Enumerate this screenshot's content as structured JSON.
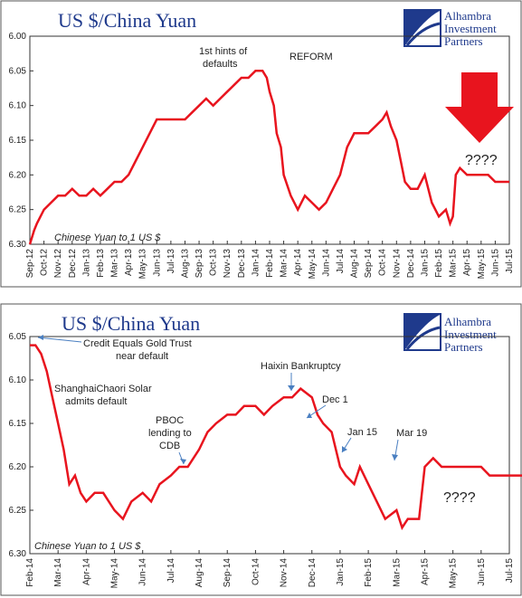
{
  "charts": [
    {
      "title": "US $/China Yuan",
      "series_label": "Chinese Yuan to 1 US $",
      "logo": {
        "line1": "Alhambra",
        "line2": "Investment",
        "line3": "Partners"
      },
      "chart_data": {
        "type": "line",
        "title": "US $/China Yuan",
        "ylabel": "Chinese Yuan to 1 US $",
        "ylim": [
          6.3,
          6.0
        ],
        "y_reversed": true,
        "y_ticks": [
          "6.00",
          "6.05",
          "6.10",
          "6.15",
          "6.20",
          "6.25",
          "6.30"
        ],
        "x_ticks": [
          "Sep-12",
          "Oct-12",
          "Nov-12",
          "Dec-12",
          "Jan-13",
          "Feb-13",
          "Mar-13",
          "Apr-13",
          "May-13",
          "Jun-13",
          "Jul-13",
          "Aug-13",
          "Sep-13",
          "Oct-13",
          "Nov-13",
          "Dec-13",
          "Jan-14",
          "Feb-14",
          "Mar-14",
          "Apr-14",
          "May-14",
          "Jun-14",
          "Jul-14",
          "Aug-14",
          "Sep-14",
          "Oct-14",
          "Nov-14",
          "Dec-14",
          "Jan-15",
          "Feb-15",
          "Mar-15",
          "Apr-15",
          "May-15",
          "Jun-15",
          "Jul-15"
        ],
        "x": [
          0,
          0.3,
          0.5,
          1,
          1.5,
          2,
          2.5,
          3,
          3.5,
          4,
          4.5,
          5,
          5.5,
          6,
          6.5,
          7,
          7.5,
          8,
          8.5,
          9,
          9.5,
          10,
          10.5,
          11,
          11.5,
          12,
          12.5,
          13,
          13.5,
          14,
          14.5,
          15,
          15.5,
          16,
          16.5,
          16.8,
          17,
          17.3,
          17.5,
          17.8,
          18,
          18.5,
          19,
          19.5,
          20,
          20.5,
          21,
          21.5,
          22,
          22.5,
          23,
          23.5,
          24,
          24.5,
          25,
          25.3,
          25.6,
          26,
          26.3,
          26.6,
          27,
          27.5,
          28,
          28.5,
          29,
          29.5,
          29.8,
          30,
          30.2,
          30.5,
          31,
          31.5,
          32,
          32.5,
          33,
          33.5,
          34
        ],
        "values": [
          6.3,
          6.28,
          6.27,
          6.25,
          6.24,
          6.23,
          6.23,
          6.22,
          6.23,
          6.23,
          6.22,
          6.23,
          6.22,
          6.21,
          6.21,
          6.2,
          6.18,
          6.16,
          6.14,
          6.12,
          6.12,
          6.12,
          6.12,
          6.12,
          6.11,
          6.1,
          6.09,
          6.1,
          6.09,
          6.08,
          6.07,
          6.06,
          6.06,
          6.05,
          6.05,
          6.06,
          6.08,
          6.1,
          6.14,
          6.16,
          6.2,
          6.23,
          6.25,
          6.23,
          6.24,
          6.25,
          6.24,
          6.22,
          6.2,
          6.16,
          6.14,
          6.14,
          6.14,
          6.13,
          6.12,
          6.11,
          6.13,
          6.15,
          6.18,
          6.21,
          6.22,
          6.22,
          6.2,
          6.24,
          6.26,
          6.25,
          6.27,
          6.26,
          6.2,
          6.19,
          6.2,
          6.2,
          6.2,
          6.2,
          6.21,
          6.21,
          6.21
        ],
        "annotations": [
          "1st hints of defaults",
          "REFORM",
          "????"
        ]
      }
    },
    {
      "title": "US $/China Yuan",
      "series_label": "Chinese Yuan to 1 US $",
      "logo": {
        "line1": "Alhambra",
        "line2": "Investment",
        "line3": "Partners"
      },
      "chart_data": {
        "type": "line",
        "title": "US $/China Yuan",
        "ylabel": "Chinese Yuan to 1 US $",
        "ylim": [
          6.3,
          6.05
        ],
        "y_reversed": true,
        "y_ticks": [
          "6.05",
          "6.10",
          "6.15",
          "6.20",
          "6.25",
          "6.30"
        ],
        "x_ticks": [
          "Feb-14",
          "Mar-14",
          "Apr-14",
          "May-14",
          "Jun-14",
          "Jul-14",
          "Aug-14",
          "Sep-14",
          "Oct-14",
          "Nov-14",
          "Dec-14",
          "Jan-15",
          "Feb-15",
          "Mar-15",
          "Apr-15",
          "May-15",
          "Jun-15",
          "Jul-15"
        ],
        "x": [
          0,
          0.2,
          0.4,
          0.6,
          0.8,
          1,
          1.2,
          1.4,
          1.6,
          1.8,
          2,
          2.3,
          2.6,
          3,
          3.3,
          3.6,
          4,
          4.3,
          4.6,
          5,
          5.3,
          5.6,
          6,
          6.3,
          6.6,
          7,
          7.3,
          7.6,
          8,
          8.3,
          8.6,
          9,
          9.3,
          9.6,
          10,
          10.2,
          10.4,
          10.7,
          11,
          11.2,
          11.5,
          11.7,
          12,
          12.3,
          12.6,
          13,
          13.2,
          13.4,
          13.6,
          13.8,
          14,
          14.3,
          14.6,
          15,
          15.3,
          15.6,
          16,
          16.3,
          16.6,
          17,
          17.3,
          17.6
        ],
        "values": [
          6.06,
          6.06,
          6.07,
          6.09,
          6.12,
          6.15,
          6.18,
          6.22,
          6.21,
          6.23,
          6.24,
          6.23,
          6.23,
          6.25,
          6.26,
          6.24,
          6.23,
          6.24,
          6.22,
          6.21,
          6.2,
          6.2,
          6.18,
          6.16,
          6.15,
          6.14,
          6.14,
          6.13,
          6.13,
          6.14,
          6.13,
          6.12,
          6.12,
          6.11,
          6.12,
          6.14,
          6.15,
          6.16,
          6.2,
          6.21,
          6.22,
          6.2,
          6.22,
          6.24,
          6.26,
          6.25,
          6.27,
          6.26,
          6.26,
          6.26,
          6.2,
          6.19,
          6.2,
          6.2,
          6.2,
          6.2,
          6.2,
          6.21,
          6.21,
          6.21,
          6.21,
          6.21
        ],
        "annotations": [
          "Credit Equals Gold Trust",
          "near default",
          "ShanghaiChaori Solar",
          "admits default",
          "PBOC",
          "lending to",
          "CDB",
          "Haixin Bankruptcy",
          "Dec 1",
          "Jan 15",
          "Mar 19",
          "????"
        ]
      }
    }
  ]
}
